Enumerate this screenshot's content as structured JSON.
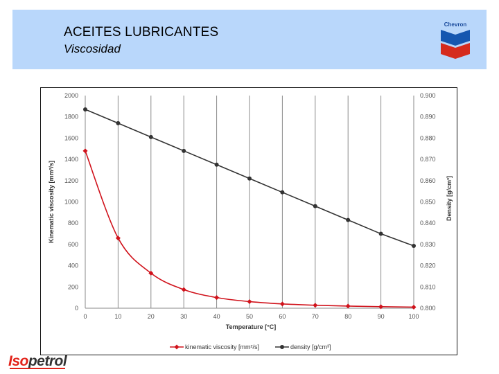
{
  "header": {
    "title": "ACEITES LUBRICANTES",
    "subtitle": "Viscosidad",
    "brand_logo_text": "Chevron"
  },
  "footer": {
    "logo_part1": "Iso",
    "logo_part2": "petrol"
  },
  "chart_data": {
    "type": "line",
    "x": [
      0,
      10,
      20,
      30,
      40,
      50,
      60,
      70,
      80,
      90,
      100
    ],
    "xlabel": "Temperature [°C]",
    "xlim": [
      0,
      100
    ],
    "x_ticks": [
      "0",
      "10",
      "20",
      "30",
      "40",
      "50",
      "60",
      "70",
      "80",
      "90",
      "100"
    ],
    "ylabel": "Kinematic viscosity [mm²/s]",
    "ylim": [
      0,
      2000
    ],
    "y_ticks": [
      "0",
      "200",
      "400",
      "600",
      "800",
      "1000",
      "1200",
      "1400",
      "1600",
      "1800",
      "2000"
    ],
    "y2label": "Density [g/cm³]",
    "y2lim": [
      0.8,
      0.9
    ],
    "y2_ticks": [
      "0.800",
      "0.810",
      "0.820",
      "0.830",
      "0.840",
      "0.850",
      "0.860",
      "0.870",
      "0.880",
      "0.890",
      "0.900"
    ],
    "grid": "vertical",
    "legend_position": "bottom",
    "series": [
      {
        "name": "kinematic viscosity [mm²/s]",
        "axis": "left",
        "color": "#d0121b",
        "marker": "diamond",
        "values": [
          1480,
          660,
          330,
          175,
          100,
          62,
          40,
          28,
          20,
          14,
          10
        ]
      },
      {
        "name": "density [g/cm³]",
        "axis": "right",
        "color": "#333333",
        "marker": "circle",
        "values": [
          0.8935,
          0.887,
          0.8805,
          0.874,
          0.8675,
          0.861,
          0.8545,
          0.848,
          0.8415,
          0.835,
          0.8293
        ]
      }
    ]
  }
}
